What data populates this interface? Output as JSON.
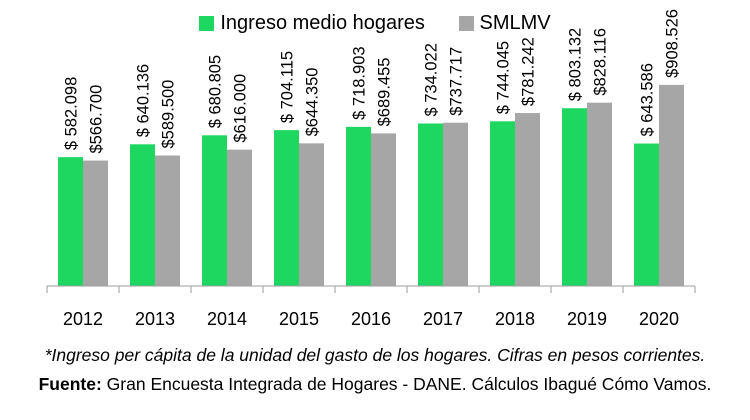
{
  "legend": {
    "series1_label": "Ingreso medio hogares",
    "series2_label": "SMLMV"
  },
  "footnote": "*Ingreso per cápita de la unidad del gasto de los hogares. Cifras en pesos corrientes.",
  "source": {
    "label": "Fuente:",
    "text": " Gran Encuesta Integrada de Hogares - DANE. Cálculos Ibagué Cómo Vamos."
  },
  "colors": {
    "series1": "#1ED760",
    "series2": "#A6A6A6",
    "axis": "#9E9E9E"
  },
  "chart_data": {
    "type": "bar",
    "categories": [
      "2012",
      "2013",
      "2014",
      "2015",
      "2016",
      "2017",
      "2018",
      "2019",
      "2020"
    ],
    "series": [
      {
        "name": "Ingreso medio hogares",
        "values": [
          582098,
          640136,
          680805,
          704115,
          718903,
          734022,
          744045,
          803132,
          643586
        ],
        "labels": [
          "$ 582.098",
          "$ 640.136",
          "$ 680.805",
          "$ 704.115",
          "$ 718.903",
          "$ 734.022",
          "$ 744.045",
          "$ 803.132",
          "$ 643.586"
        ]
      },
      {
        "name": "SMLMV",
        "values": [
          566700,
          589500,
          616000,
          644350,
          689455,
          737717,
          781242,
          828116,
          908526
        ],
        "labels": [
          "$566.700",
          "$589.500",
          "$616.000",
          "$644.350",
          "$689.455",
          "$737.717",
          "$781.242",
          "$828.116",
          "$908.526"
        ]
      }
    ],
    "ylim": [
      0,
      1292000
    ],
    "grid": false,
    "legend_position": "top"
  }
}
